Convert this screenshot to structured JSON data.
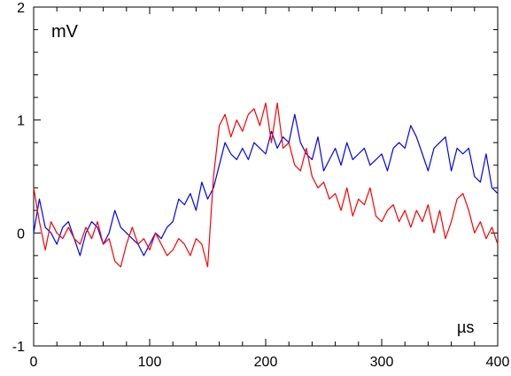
{
  "chart_data": {
    "type": "line",
    "units_y": "mV",
    "units_x": "µs",
    "xlim": [
      0,
      400
    ],
    "ylim": [
      -1,
      2
    ],
    "x_ticks": [
      0,
      100,
      200,
      300,
      400
    ],
    "y_ticks": [
      -1,
      0,
      1,
      2
    ],
    "x_tick_labels": [
      "0",
      "100",
      "200",
      "300",
      "400"
    ],
    "y_tick_labels": [
      "-1",
      "0",
      "1",
      "2"
    ],
    "grid": false,
    "series": [
      {
        "color": "#0000ff",
        "points": [
          [
            0,
            0.0
          ],
          [
            5,
            0.3
          ],
          [
            10,
            0.05
          ],
          [
            15,
            0.0
          ],
          [
            20,
            -0.1
          ],
          [
            25,
            0.05
          ],
          [
            30,
            0.1
          ],
          [
            35,
            -0.05
          ],
          [
            40,
            -0.2
          ],
          [
            45,
            0.0
          ],
          [
            50,
            0.1
          ],
          [
            55,
            0.05
          ],
          [
            60,
            -0.1
          ],
          [
            65,
            0.0
          ],
          [
            70,
            0.2
          ],
          [
            75,
            0.05
          ],
          [
            80,
            0.0
          ],
          [
            85,
            -0.05
          ],
          [
            90,
            -0.1
          ],
          [
            95,
            -0.2
          ],
          [
            100,
            -0.1
          ],
          [
            105,
            0.0
          ],
          [
            110,
            -0.05
          ],
          [
            115,
            0.05
          ],
          [
            120,
            0.1
          ],
          [
            125,
            0.3
          ],
          [
            130,
            0.25
          ],
          [
            135,
            0.35
          ],
          [
            140,
            0.2
          ],
          [
            145,
            0.45
          ],
          [
            150,
            0.3
          ],
          [
            155,
            0.4
          ],
          [
            160,
            0.6
          ],
          [
            165,
            0.8
          ],
          [
            170,
            0.7
          ],
          [
            175,
            0.65
          ],
          [
            180,
            0.75
          ],
          [
            185,
            0.65
          ],
          [
            190,
            0.8
          ],
          [
            195,
            0.75
          ],
          [
            200,
            0.7
          ],
          [
            205,
            0.9
          ],
          [
            210,
            0.75
          ],
          [
            215,
            0.85
          ],
          [
            220,
            0.8
          ],
          [
            225,
            1.05
          ],
          [
            230,
            0.8
          ],
          [
            235,
            0.7
          ],
          [
            240,
            0.65
          ],
          [
            245,
            0.85
          ],
          [
            250,
            0.55
          ],
          [
            255,
            0.65
          ],
          [
            260,
            0.75
          ],
          [
            265,
            0.6
          ],
          [
            270,
            0.8
          ],
          [
            275,
            0.65
          ],
          [
            280,
            0.7
          ],
          [
            285,
            0.75
          ],
          [
            290,
            0.6
          ],
          [
            295,
            0.65
          ],
          [
            300,
            0.7
          ],
          [
            305,
            0.55
          ],
          [
            310,
            0.75
          ],
          [
            315,
            0.8
          ],
          [
            320,
            0.75
          ],
          [
            325,
            0.95
          ],
          [
            330,
            0.85
          ],
          [
            335,
            0.7
          ],
          [
            340,
            0.55
          ],
          [
            345,
            0.75
          ],
          [
            350,
            0.8
          ],
          [
            355,
            0.85
          ],
          [
            360,
            0.55
          ],
          [
            365,
            0.75
          ],
          [
            370,
            0.7
          ],
          [
            375,
            0.75
          ],
          [
            380,
            0.5
          ],
          [
            385,
            0.45
          ],
          [
            390,
            0.7
          ],
          [
            395,
            0.4
          ],
          [
            400,
            0.35
          ]
        ]
      },
      {
        "color": "#ff0000",
        "points": [
          [
            0,
            0.4
          ],
          [
            5,
            0.1
          ],
          [
            10,
            -0.15
          ],
          [
            15,
            0.1
          ],
          [
            20,
            0.0
          ],
          [
            25,
            -0.05
          ],
          [
            30,
            0.05
          ],
          [
            35,
            -0.05
          ],
          [
            40,
            -0.1
          ],
          [
            45,
            0.05
          ],
          [
            50,
            -0.05
          ],
          [
            55,
            0.1
          ],
          [
            60,
            -0.1
          ],
          [
            65,
            -0.05
          ],
          [
            70,
            -0.25
          ],
          [
            75,
            -0.3
          ],
          [
            80,
            -0.1
          ],
          [
            85,
            0.05
          ],
          [
            90,
            -0.1
          ],
          [
            95,
            -0.05
          ],
          [
            100,
            -0.15
          ],
          [
            105,
            0.0
          ],
          [
            110,
            -0.1
          ],
          [
            115,
            -0.2
          ],
          [
            120,
            -0.15
          ],
          [
            125,
            -0.05
          ],
          [
            130,
            -0.1
          ],
          [
            135,
            -0.2
          ],
          [
            140,
            -0.05
          ],
          [
            145,
            -0.1
          ],
          [
            150,
            -0.3
          ],
          [
            155,
            0.5
          ],
          [
            160,
            0.95
          ],
          [
            165,
            1.05
          ],
          [
            170,
            0.85
          ],
          [
            175,
            1.0
          ],
          [
            180,
            0.9
          ],
          [
            185,
            1.05
          ],
          [
            190,
            1.1
          ],
          [
            195,
            0.95
          ],
          [
            200,
            1.15
          ],
          [
            205,
            0.8
          ],
          [
            210,
            1.15
          ],
          [
            215,
            0.75
          ],
          [
            220,
            0.8
          ],
          [
            225,
            0.6
          ],
          [
            230,
            0.55
          ],
          [
            235,
            0.75
          ],
          [
            240,
            0.5
          ],
          [
            245,
            0.4
          ],
          [
            250,
            0.45
          ],
          [
            255,
            0.3
          ],
          [
            260,
            0.35
          ],
          [
            265,
            0.2
          ],
          [
            270,
            0.4
          ],
          [
            275,
            0.15
          ],
          [
            280,
            0.3
          ],
          [
            285,
            0.25
          ],
          [
            290,
            0.4
          ],
          [
            295,
            0.15
          ],
          [
            300,
            0.1
          ],
          [
            305,
            0.2
          ],
          [
            310,
            0.25
          ],
          [
            315,
            0.1
          ],
          [
            320,
            0.2
          ],
          [
            325,
            0.05
          ],
          [
            330,
            0.2
          ],
          [
            335,
            0.1
          ],
          [
            340,
            0.25
          ],
          [
            345,
            0.0
          ],
          [
            350,
            0.2
          ],
          [
            355,
            -0.05
          ],
          [
            360,
            0.1
          ],
          [
            365,
            0.3
          ],
          [
            370,
            0.35
          ],
          [
            375,
            0.2
          ],
          [
            380,
            0.0
          ],
          [
            385,
            0.1
          ],
          [
            390,
            -0.05
          ],
          [
            395,
            0.05
          ],
          [
            400,
            -0.1
          ]
        ]
      }
    ]
  }
}
